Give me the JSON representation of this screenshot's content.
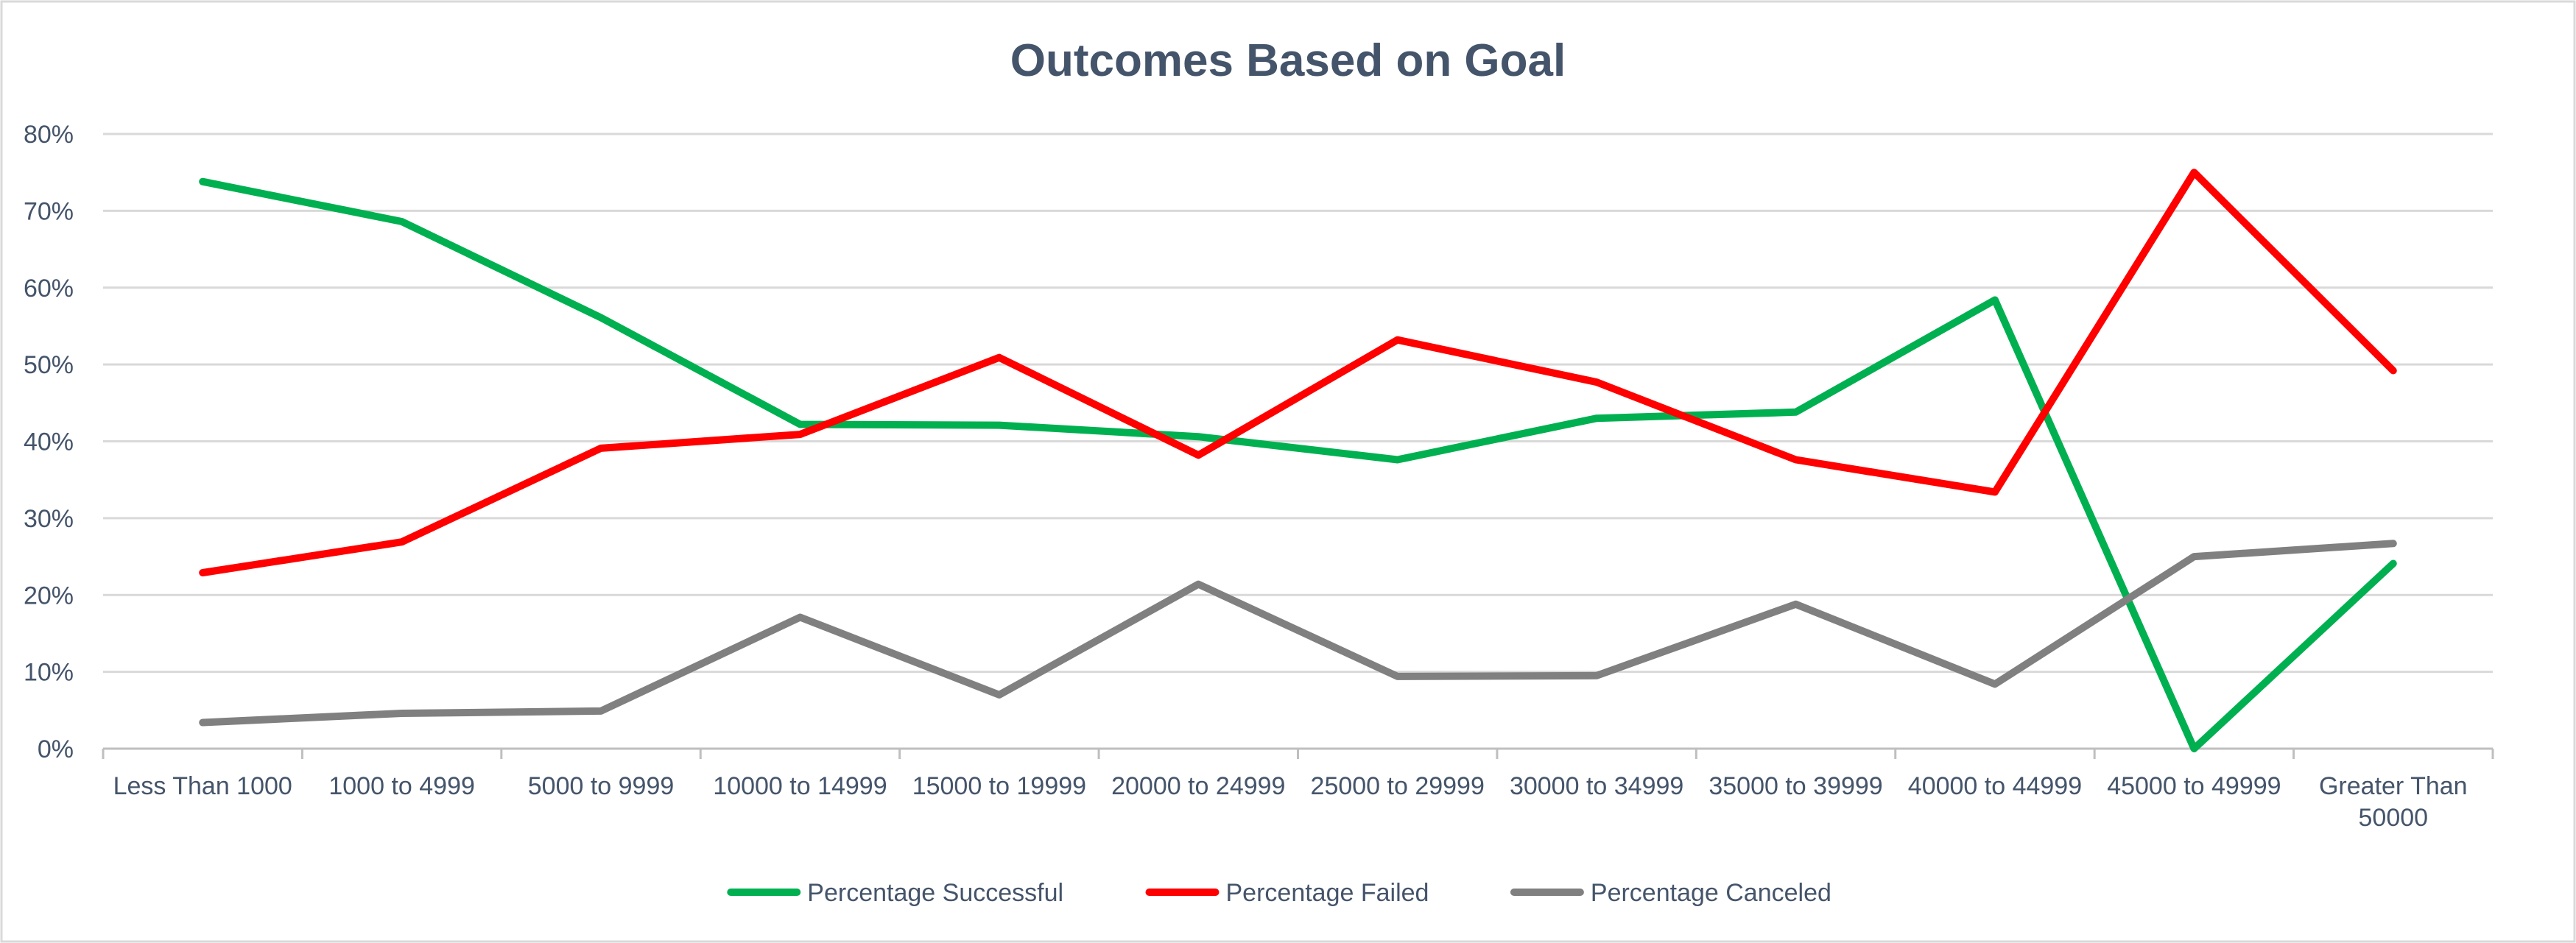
{
  "chart_data": {
    "type": "line",
    "title": "Outcomes Based on Goal",
    "xlabel": "",
    "ylabel": "",
    "categories": [
      "Less Than 1000",
      "1000 to 4999",
      "5000 to 9999",
      "10000 to 14999",
      "15000 to 19999",
      "20000 to 24999",
      "25000 to 29999",
      "30000 to 34999",
      "35000 to 39999",
      "40000 to 44999",
      "45000 to 49999",
      "Greater Than 50000"
    ],
    "category_lines": [
      [
        "Less Than 1000"
      ],
      [
        "1000 to 4999"
      ],
      [
        "5000 to 9999"
      ],
      [
        "10000 to 14999"
      ],
      [
        "15000 to 19999"
      ],
      [
        "20000 to 24999"
      ],
      [
        "25000 to 29999"
      ],
      [
        "30000 to 34999"
      ],
      [
        "35000 to 39999"
      ],
      [
        "40000 to 44999"
      ],
      [
        "45000 to 49999"
      ],
      [
        "Greater Than",
        "50000"
      ]
    ],
    "ylim": [
      0,
      80
    ],
    "yticks": [
      0,
      10,
      20,
      30,
      40,
      50,
      60,
      70,
      80
    ],
    "ytick_labels": [
      "0%",
      "10%",
      "20%",
      "30%",
      "40%",
      "50%",
      "60%",
      "70%",
      "80%"
    ],
    "grid": true,
    "legend_position": "bottom",
    "series": [
      {
        "name": "Percentage Successful",
        "color": "#00b050",
        "values": [
          73.8,
          68.6,
          56.1,
          42.2,
          42.1,
          40.6,
          37.6,
          43.0,
          43.8,
          58.4,
          0.0,
          24.1
        ]
      },
      {
        "name": "Percentage Failed",
        "color": "#ff0000",
        "values": [
          22.9,
          26.9,
          39.1,
          40.9,
          50.9,
          38.2,
          53.2,
          47.7,
          37.6,
          33.4,
          75.0,
          49.2
        ]
      },
      {
        "name": "Percentage Canceled",
        "color": "#808080",
        "values": [
          3.4,
          4.6,
          4.9,
          17.1,
          7.0,
          21.4,
          9.4,
          9.5,
          18.8,
          8.4,
          25.0,
          26.7
        ]
      }
    ]
  }
}
